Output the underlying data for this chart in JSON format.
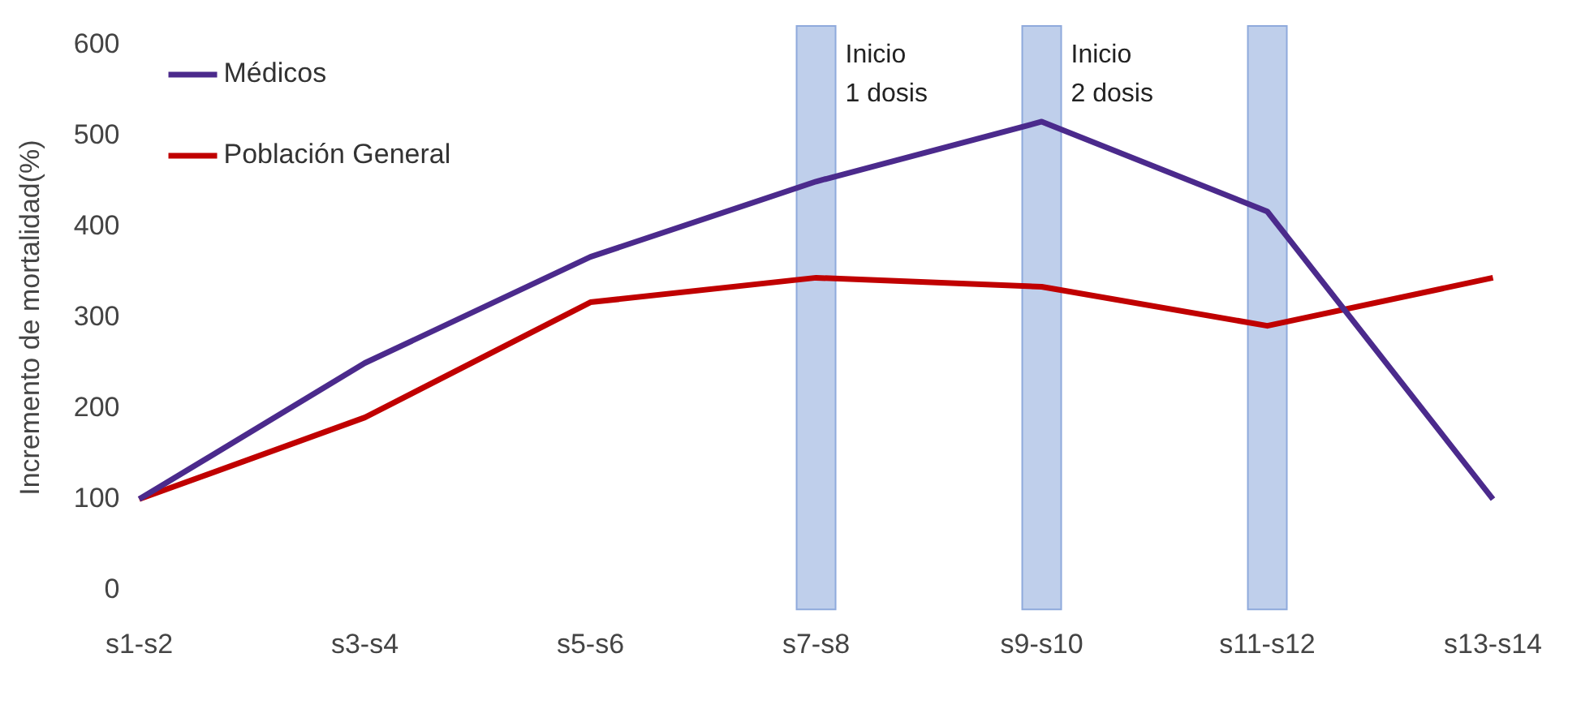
{
  "chart_data": {
    "type": "line",
    "ylabel": "Incremento de mortalidad(%)",
    "categories": [
      "s1-s2",
      "s3-s4",
      "s5-s6",
      "s7-s8",
      "s9-s10",
      "s11-s12",
      "s13-s14"
    ],
    "series": [
      {
        "name": "Médicos",
        "color": "#4b2a8c",
        "values": [
          100,
          250,
          367,
          450,
          516,
          417,
          100
        ]
      },
      {
        "name": "Población General",
        "color": "#c00000",
        "values": [
          100,
          190,
          317,
          344,
          334,
          291,
          344
        ]
      }
    ],
    "ylim": [
      0,
      600
    ],
    "yticks": [
      0,
      100,
      200,
      300,
      400,
      500,
      600
    ],
    "grid": false,
    "legend": "top left",
    "marker": "none",
    "bands": [
      {
        "axis": "x",
        "from": "s7-s8",
        "to": "s7-s8",
        "label": "Inicio 1 dosis",
        "color": "#b4c7e7"
      },
      {
        "axis": "x",
        "from": "s9-s10",
        "to": "s9-s10",
        "label": "Inicio 2 dosis",
        "color": "#b4c7e7"
      },
      {
        "axis": "x",
        "from": "s11-s12",
        "to": "s11-s12",
        "color": "#b4c7e7"
      }
    ]
  }
}
